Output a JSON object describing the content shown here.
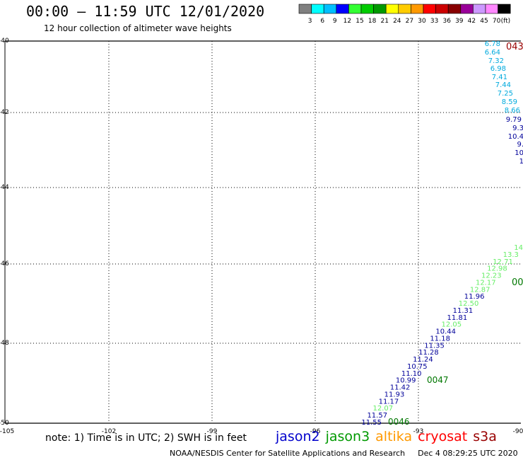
{
  "title": "00:00 – 11:59 UTC 12/01/2020",
  "subtitle": "12 hour collection of altimeter wave heights",
  "colorbar": {
    "colors": [
      "#808080",
      "#00ffff",
      "#00bfff",
      "#0000ff",
      "#33ff33",
      "#00cc00",
      "#009900",
      "#ffff00",
      "#ffcc00",
      "#ff9900",
      "#ff0000",
      "#cc0000",
      "#880000",
      "#990099",
      "#cc99ff",
      "#ff88ff",
      "#000000"
    ],
    "labels": [
      "3",
      "6",
      "9",
      "12",
      "15",
      "18",
      "21",
      "24",
      "27",
      "30",
      "33",
      "36",
      "39",
      "42",
      "45",
      "70",
      "(ft)"
    ]
  },
  "map": {
    "lat_labels": [
      "-40",
      "-42",
      "-44",
      "-46",
      "-48",
      "-50"
    ],
    "lon_labels": [
      "-105",
      "-102",
      "-99",
      "-96",
      "-93",
      "-90"
    ],
    "track_north": {
      "values": [
        "6.78",
        "6.64",
        "7.32",
        "6.98",
        "7.41",
        "7.44",
        "7.25",
        "8.59",
        "8.66",
        "9.79",
        "9.3",
        "10.4",
        "9.",
        "10",
        "1"
      ],
      "colors": [
        "#00aadd",
        "#00aadd",
        "#00aadd",
        "#00aadd",
        "#00aadd",
        "#00aadd",
        "#00aadd",
        "#00aadd",
        "#00aadd",
        "#000099",
        "#000099",
        "#000099",
        "#000099",
        "#000099",
        "#000099"
      ]
    },
    "track_south": {
      "values": [
        "14",
        "13.3",
        "12.71",
        "12.98",
        "12.23",
        "12.17",
        "12.87",
        "11.96",
        "12.50",
        "11.31",
        "11.81",
        "12.05",
        "10.44",
        "11.18",
        "11.35",
        "11.28",
        "11.24",
        "10.75",
        "11.10",
        "10.99",
        "11.42",
        "11.93",
        "11.17",
        "12.07",
        "11.57",
        "11.55"
      ],
      "colors": [
        "#66ee66",
        "#66ee66",
        "#66ee66",
        "#66ee66",
        "#66ee66",
        "#66ee66",
        "#66ee66",
        "#000099",
        "#66ee66",
        "#000099",
        "#000099",
        "#66ee66",
        "#000099",
        "#000099",
        "#000099",
        "#000099",
        "#000099",
        "#000099",
        "#000099",
        "#000099",
        "#000099",
        "#000099",
        "#000099",
        "#66ee66",
        "#000099",
        "#000099"
      ]
    },
    "time_labels": [
      {
        "text": "043",
        "color": "#990000"
      },
      {
        "text": "00",
        "color": "#007700"
      },
      {
        "text": "0047",
        "color": "#007700"
      },
      {
        "text": "0046",
        "color": "#007700"
      }
    ]
  },
  "note": "note: 1) Time is in UTC; 2) SWH is in feet",
  "satellites": [
    {
      "name": "jason2",
      "color": "#0000cc"
    },
    {
      "name": "jason3",
      "color": "#009900"
    },
    {
      "name": "altika",
      "color": "#ff9900"
    },
    {
      "name": "cryosat",
      "color": "#ff0000"
    },
    {
      "name": "s3a",
      "color": "#990000"
    }
  ],
  "footer": {
    "credit": "NOAA/NESDIS Center for Satellite Applications and Research",
    "timestamp": "Dec  4 08:29:25 UTC 2020"
  }
}
